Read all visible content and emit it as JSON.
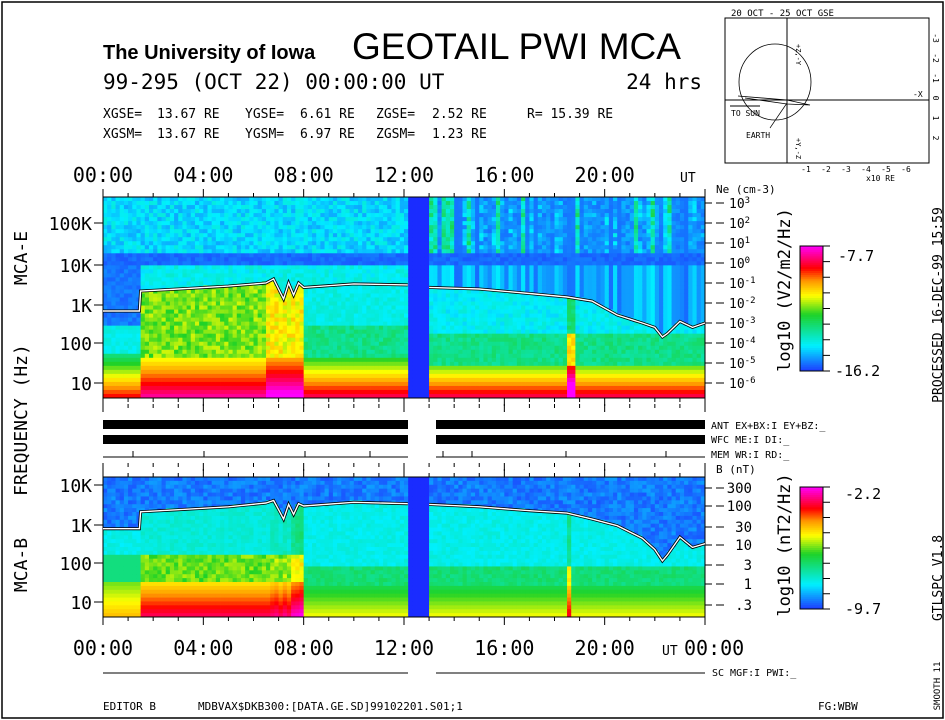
{
  "header": {
    "institution": "The University of Iowa",
    "title": "GEOTAIL PWI MCA",
    "date_line": "99-295 (OCT 22) 00:00:00 UT",
    "duration": "24 hrs",
    "gse": {
      "x_label": "XGSE=",
      "x": "13.67 RE",
      "y_label": "YGSE=",
      "y": "6.61 RE",
      "z_label": "ZGSE=",
      "z": "2.52 RE",
      "r": "R= 15.39 RE"
    },
    "gsm": {
      "x_label": "XGSM=",
      "x": "13.67 RE",
      "y_label": "YGSM=",
      "y": "6.97 RE",
      "z_label": "ZGSM=",
      "z": "1.23 RE"
    }
  },
  "orbit": {
    "title": "20 OCT - 25 OCT  GSE",
    "to_sun": "TO SUN",
    "earth": "EARTH",
    "axis_y_top": "+Z,-Y",
    "axis_y_bottom": "+Y,-Z",
    "axis_x": "-X",
    "x_ticks": [
      "-1",
      "-2",
      "-3",
      "-4",
      "-5",
      "-6"
    ],
    "y_ticks": [
      "-3",
      "-2",
      "-1",
      "0",
      "1",
      "2"
    ],
    "x_unit": "x10 RE"
  },
  "labels": {
    "mca_e": "MCA-E",
    "mca_b": "MCA-B",
    "frequency": "FREQUENCY (Hz)",
    "ut": "UT",
    "ne_label": "Ne (cm-3)",
    "b_label": "B (nT)",
    "e_unit": "log10 (V2/m2/Hz)",
    "b_unit": "log10 (nT2/Hz)"
  },
  "status": {
    "ant": "ANT EX+BX:I  EY+BZ:_",
    "wfc": "WFC ME:I     DI:_",
    "mem": "MEM WR:I     RD:_",
    "sc": "SC MGF:I   PWI:_"
  },
  "footer": {
    "editor": "EDITOR B",
    "file": "MDBVAX$DKB300:[DATA.GE.SD]99102201.S01;1",
    "fg": "FG:WBW"
  },
  "side": {
    "processed": "PROCESSED 16-DEC-99  15:59",
    "version": "GTLSPC   V1.8",
    "smooth": "SMOOTH 11"
  },
  "chart_data": [
    {
      "type": "heatmap",
      "title": "MCA-E",
      "xlabel": "UT",
      "x_ticks": [
        "00:00",
        "04:00",
        "08:00",
        "12:00",
        "16:00",
        "20:00"
      ],
      "xlim_hours": [
        0,
        24
      ],
      "ylabel": "FREQUENCY (Hz)",
      "y_scale": "log",
      "y_ticks": [
        "100K",
        "10K",
        "1K",
        "100",
        "10"
      ],
      "colorbar": {
        "label": "log10 (V2/m2/Hz)",
        "min": "-16.2",
        "max": "-7.7"
      },
      "data_gap_hours": [
        12.15,
        13.0
      ],
      "right_axis": {
        "label": "Ne (cm-3)",
        "ticks": [
          "10^3",
          "10^2",
          "10^1",
          "10^0",
          "10^-1",
          "10^-2",
          "10^-3",
          "10^-4",
          "10^-5",
          "10^-6"
        ]
      },
      "line_series": {
        "name": "Ne",
        "x_hours": [
          0,
          1.45,
          1.5,
          3,
          5,
          6.5,
          6.8,
          7.0,
          7.2,
          7.4,
          7.6,
          7.8,
          8,
          10,
          12.15,
          null,
          13,
          15,
          17,
          18.5,
          19.5,
          20.5,
          21.5,
          22,
          22.3,
          22.5,
          23,
          23.5,
          24
        ],
        "y": [
          0.004,
          0.004,
          0.04,
          0.05,
          0.07,
          0.1,
          0.16,
          0.05,
          0.016,
          0.1,
          0.025,
          0.1,
          0.06,
          0.09,
          0.08,
          null,
          0.06,
          0.05,
          0.03,
          0.02,
          0.0125,
          0.0025,
          0.001,
          0.0006,
          0.0002,
          0.0003,
          0.0012,
          0.0006,
          0.001
        ]
      }
    },
    {
      "type": "heatmap",
      "title": "MCA-B",
      "xlabel": "UT",
      "x_ticks": [
        "00:00",
        "04:00",
        "08:00",
        "12:00",
        "16:00",
        "20:00",
        "00:00"
      ],
      "xlim_hours": [
        0,
        24
      ],
      "ylabel": "FREQUENCY (Hz)",
      "y_scale": "log",
      "y_ticks": [
        "10K",
        "1K",
        "100",
        "10"
      ],
      "colorbar": {
        "label": "log10 (nT2/Hz)",
        "min": "-9.7",
        "max": "-2.2"
      },
      "data_gap_hours": [
        12.15,
        13.0
      ],
      "right_axis": {
        "label": "B (nT)",
        "ticks": [
          "300",
          "100",
          "30",
          "10",
          "3",
          "1",
          ".3"
        ]
      },
      "line_series": {
        "name": "B",
        "x_hours": [
          0,
          1.45,
          1.5,
          3,
          5,
          6.5,
          6.8,
          7.0,
          7.2,
          7.4,
          7.6,
          7.8,
          8,
          10,
          12.15,
          null,
          13,
          15,
          17,
          18.5,
          19.5,
          20.5,
          21.5,
          22,
          22.3,
          22.5,
          23,
          23.5,
          24
        ],
        "y": [
          25,
          25,
          70,
          80,
          95,
          120,
          140,
          80,
          45,
          110,
          60,
          115,
          100,
          125,
          115,
          null,
          110,
          95,
          75,
          65,
          45,
          30,
          14,
          7,
          3.5,
          5,
          15,
          8,
          10
        ]
      }
    }
  ]
}
